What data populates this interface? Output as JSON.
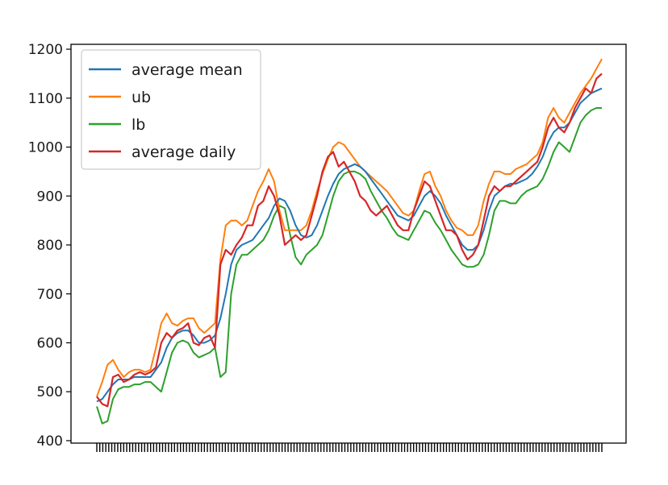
{
  "chart_data": {
    "type": "line",
    "title": "",
    "xlabel": "",
    "ylabel": "",
    "ylim": [
      395,
      1210
    ],
    "y_ticks": [
      400,
      500,
      600,
      700,
      800,
      900,
      1000,
      1100,
      1200
    ],
    "grid": false,
    "legend_position": "top-left",
    "x_tick_labels_note": "",
    "series": [
      {
        "name": "average mean",
        "color": "#1f77b4",
        "values": [
          480,
          485,
          500,
          515,
          525,
          525,
          525,
          530,
          530,
          530,
          530,
          545,
          560,
          590,
          610,
          620,
          625,
          625,
          615,
          600,
          600,
          605,
          615,
          650,
          700,
          760,
          790,
          800,
          805,
          810,
          825,
          840,
          855,
          880,
          895,
          890,
          870,
          840,
          820,
          815,
          820,
          840,
          870,
          900,
          925,
          945,
          955,
          960,
          965,
          960,
          950,
          935,
          920,
          905,
          890,
          875,
          860,
          855,
          850,
          860,
          880,
          900,
          910,
          900,
          885,
          860,
          840,
          820,
          800,
          790,
          790,
          800,
          830,
          870,
          900,
          910,
          920,
          925,
          925,
          930,
          935,
          945,
          960,
          980,
          1010,
          1030,
          1040,
          1040,
          1050,
          1070,
          1090,
          1100,
          1110,
          1115,
          1120
        ]
      },
      {
        "name": "ub",
        "color": "#ff7f0e",
        "values": [
          490,
          520,
          555,
          565,
          545,
          530,
          540,
          545,
          545,
          540,
          545,
          590,
          640,
          660,
          640,
          635,
          645,
          650,
          650,
          630,
          620,
          630,
          640,
          770,
          840,
          850,
          850,
          840,
          850,
          880,
          910,
          930,
          955,
          930,
          870,
          830,
          830,
          830,
          830,
          840,
          870,
          910,
          945,
          975,
          1000,
          1010,
          1005,
          990,
          975,
          960,
          950,
          940,
          930,
          920,
          910,
          895,
          880,
          865,
          860,
          870,
          910,
          945,
          950,
          920,
          900,
          870,
          850,
          835,
          830,
          820,
          820,
          840,
          890,
          925,
          950,
          950,
          945,
          945,
          955,
          960,
          965,
          975,
          985,
          1010,
          1060,
          1080,
          1060,
          1050,
          1070,
          1090,
          1110,
          1125,
          1140,
          1160,
          1180
        ]
      },
      {
        "name": "lb",
        "color": "#2ca02c",
        "values": [
          470,
          435,
          440,
          485,
          505,
          510,
          510,
          515,
          515,
          520,
          520,
          510,
          500,
          540,
          580,
          600,
          605,
          600,
          580,
          570,
          575,
          580,
          590,
          530,
          540,
          700,
          760,
          780,
          780,
          790,
          800,
          810,
          830,
          860,
          880,
          875,
          820,
          775,
          760,
          780,
          790,
          800,
          820,
          860,
          900,
          930,
          945,
          950,
          950,
          945,
          935,
          910,
          890,
          870,
          855,
          835,
          820,
          815,
          810,
          830,
          850,
          870,
          865,
          845,
          830,
          810,
          790,
          775,
          760,
          755,
          755,
          760,
          780,
          820,
          870,
          890,
          890,
          885,
          885,
          900,
          910,
          915,
          920,
          935,
          960,
          990,
          1010,
          1000,
          990,
          1020,
          1050,
          1065,
          1075,
          1080,
          1080
        ]
      },
      {
        "name": "average daily",
        "color": "#d62728",
        "values": [
          490,
          475,
          470,
          530,
          535,
          520,
          525,
          535,
          540,
          535,
          540,
          550,
          600,
          620,
          610,
          625,
          630,
          640,
          600,
          595,
          610,
          615,
          590,
          760,
          790,
          780,
          800,
          815,
          840,
          840,
          880,
          890,
          920,
          900,
          860,
          800,
          810,
          820,
          810,
          820,
          860,
          900,
          950,
          980,
          990,
          960,
          970,
          950,
          930,
          900,
          890,
          870,
          860,
          870,
          880,
          860,
          840,
          830,
          830,
          870,
          900,
          930,
          920,
          890,
          860,
          830,
          830,
          820,
          790,
          770,
          780,
          800,
          850,
          900,
          920,
          910,
          920,
          920,
          930,
          940,
          950,
          960,
          970,
          1000,
          1040,
          1060,
          1040,
          1030,
          1050,
          1080,
          1100,
          1120,
          1110,
          1140,
          1150
        ]
      }
    ]
  }
}
